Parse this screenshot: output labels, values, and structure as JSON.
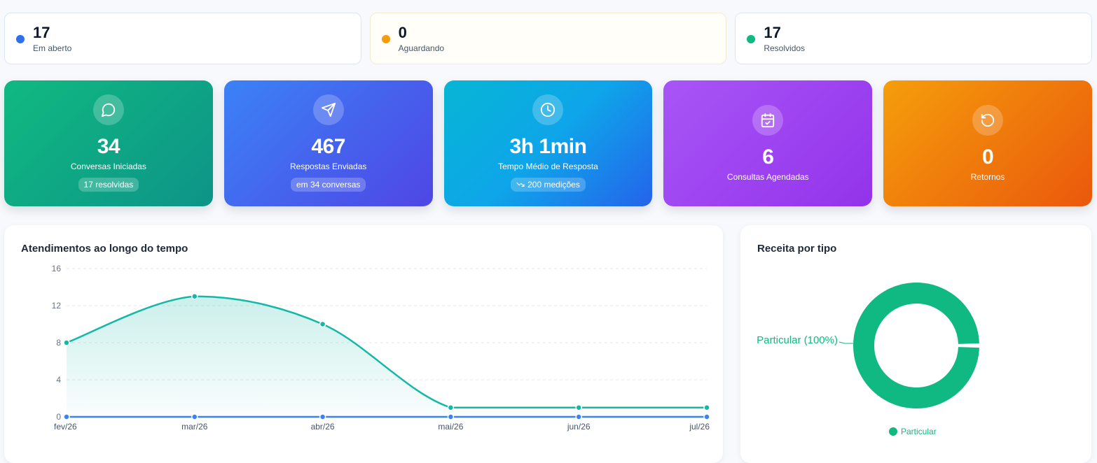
{
  "status_cards": [
    {
      "value": "17",
      "label": "Em aberto",
      "color": "#2f6fed"
    },
    {
      "value": "0",
      "label": "Aguardando",
      "color": "#f59e0b"
    },
    {
      "value": "17",
      "label": "Resolvidos",
      "color": "#10b981"
    }
  ],
  "kpis": [
    {
      "value": "34",
      "label": "Conversas Iniciadas",
      "pill": "17 resolvidas",
      "icon": "message-circle-icon"
    },
    {
      "value": "467",
      "label": "Respostas Enviadas",
      "pill": "em 34 conversas",
      "icon": "send-icon"
    },
    {
      "value": "3h 1min",
      "label": "Tempo Médio de Resposta",
      "pill": "200 medições",
      "icon": "clock-icon"
    },
    {
      "value": "6",
      "label": "Consultas Agendadas",
      "icon": "calendar-check-icon"
    },
    {
      "value": "0",
      "label": "Retornos",
      "icon": "rotate-ccw-icon"
    }
  ],
  "line_panel": {
    "title": "Atendimentos ao longo do tempo"
  },
  "pie_panel": {
    "title": "Receita por tipo"
  },
  "chart_data": [
    {
      "type": "area",
      "title": "Atendimentos ao longo do tempo",
      "categories": [
        "fev/26",
        "mar/26",
        "abr/26",
        "mai/26",
        "jun/26",
        "jul/26"
      ],
      "ylim": [
        0,
        16
      ],
      "yticks": [
        0,
        4,
        8,
        12,
        16
      ],
      "grid": true,
      "series": [
        {
          "values": [
            8,
            13,
            10,
            1,
            1,
            1
          ],
          "color": "#14b8a6"
        },
        {
          "values": [
            0,
            0,
            0,
            0,
            0,
            0
          ],
          "color": "#3b82f6"
        }
      ]
    },
    {
      "type": "pie",
      "title": "Receita por tipo",
      "slices": [
        {
          "label": "Particular",
          "value": 100,
          "color": "#10b981"
        }
      ],
      "slice_label": "Particular (100%)",
      "legend": "bottom"
    }
  ]
}
